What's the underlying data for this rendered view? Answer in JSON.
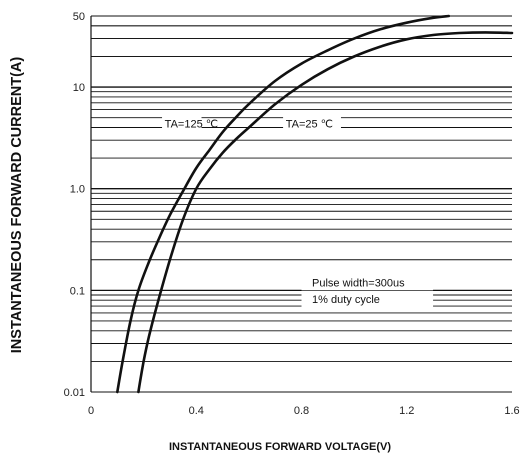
{
  "chart_data": {
    "type": "line",
    "title": "",
    "xlabel": "INSTANTANEOUS FORWARD VOLTAGE(V)",
    "ylabel": "INSTANTANEOUS FORWARD CURRENT(A)",
    "x_scale": "linear",
    "y_scale": "log",
    "xlim": [
      0,
      1.6
    ],
    "ylim": [
      0.01,
      50
    ],
    "x_ticks": [
      0,
      0.4,
      0.8,
      1.2,
      1.6
    ],
    "x_tick_labels": [
      "0",
      "0.4",
      "0.8",
      "1.2",
      "1.6"
    ],
    "y_ticks": [
      0.01,
      0.1,
      1.0,
      10,
      50
    ],
    "y_tick_labels": [
      "0.01",
      "0.1",
      "1.0",
      "10",
      "50"
    ],
    "grid": "horizontal",
    "series": [
      {
        "name": "TA=125 ℃",
        "x": [
          0.1,
          0.12,
          0.15,
          0.18,
          0.22,
          0.26,
          0.3,
          0.35,
          0.4,
          0.45,
          0.5,
          0.55,
          0.6,
          0.7,
          0.8,
          0.9,
          1.0,
          1.1,
          1.2,
          1.3,
          1.36
        ],
        "y": [
          0.01,
          0.02,
          0.05,
          0.1,
          0.19,
          0.33,
          0.55,
          0.95,
          1.6,
          2.4,
          3.6,
          5.0,
          6.8,
          11.5,
          17.0,
          23.0,
          30.0,
          37.0,
          43.0,
          48.0,
          50.0
        ]
      },
      {
        "name": "TA=25 ℃",
        "x": [
          0.18,
          0.2,
          0.22,
          0.25,
          0.3,
          0.35,
          0.4,
          0.45,
          0.5,
          0.55,
          0.6,
          0.7,
          0.8,
          0.9,
          1.0,
          1.1,
          1.2,
          1.3,
          1.4,
          1.5,
          1.6
        ],
        "y": [
          0.01,
          0.02,
          0.035,
          0.07,
          0.2,
          0.5,
          1.0,
          1.55,
          2.25,
          3.05,
          4.0,
          6.8,
          10.5,
          15.0,
          20.0,
          25.0,
          29.5,
          32.5,
          34.0,
          34.5,
          34.0
        ]
      }
    ],
    "annotations": [
      {
        "text": "TA=125 ℃",
        "x": 0.28,
        "y": 4.4
      },
      {
        "text": "TA=25 ℃",
        "x": 0.74,
        "y": 4.4
      },
      {
        "text": "Pulse width=300us",
        "x": 0.84,
        "y": 0.12
      },
      {
        "text": "1% duty cycle",
        "x": 0.84,
        "y": 0.082
      }
    ]
  }
}
